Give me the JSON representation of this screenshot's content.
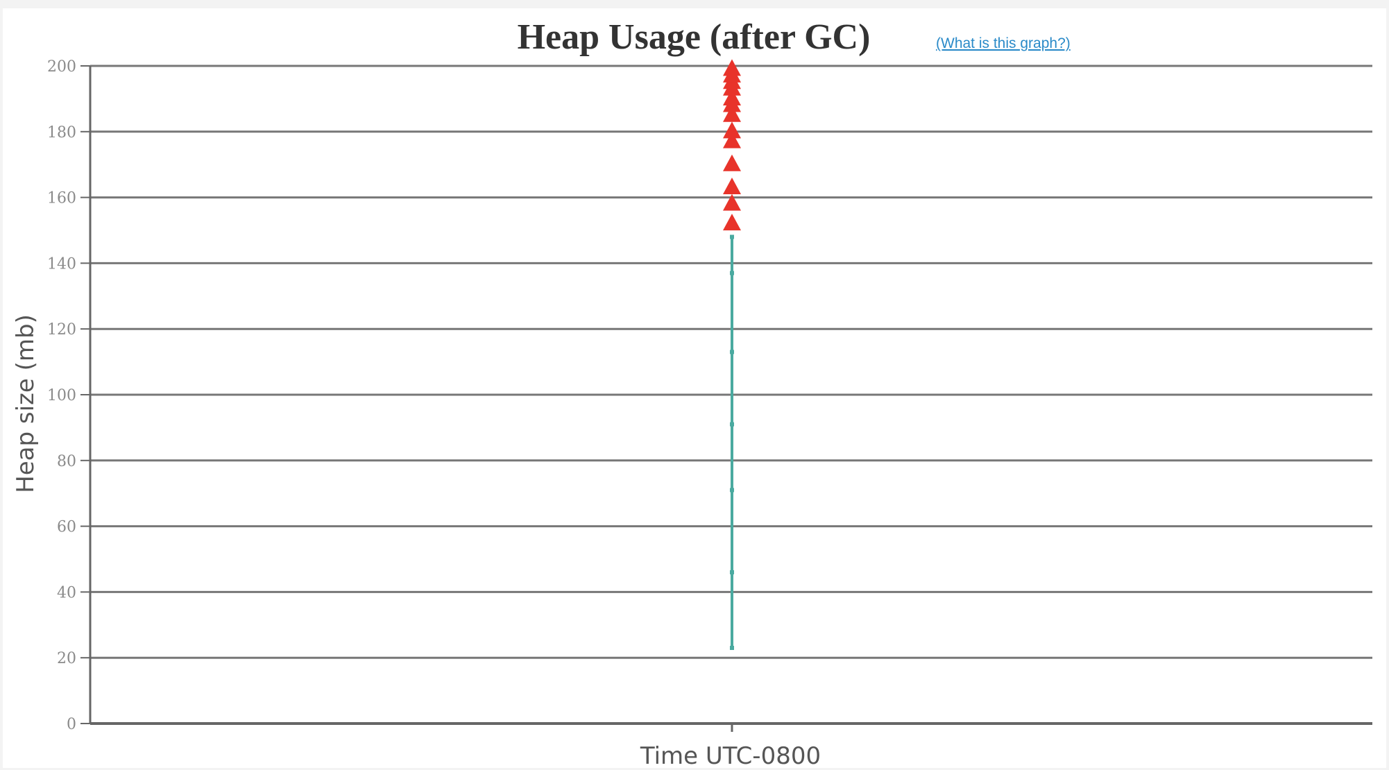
{
  "colors": {
    "background": "#ffffff",
    "grid": "#777777",
    "axis": "#666666",
    "title": "#333333",
    "tick_text": "#8a8a8a",
    "axis_label": "#555555",
    "link": "#2a8ac8"
  },
  "help_link": "(What is this graph?)",
  "chart_data": {
    "type": "scatter",
    "title": "Heap Usage (after GC)",
    "xlabel": "Time UTC-0800",
    "ylabel": "Heap size (mb)",
    "ylim": [
      0,
      200
    ],
    "yticks": [
      "0",
      "20",
      "40",
      "60",
      "80",
      "100",
      "120",
      "140",
      "160",
      "180",
      "200"
    ],
    "grid": true,
    "legend": "none",
    "series": [
      {
        "marker": "point",
        "color": "#4aaaa0",
        "connected": true,
        "y": [
          23,
          46,
          71,
          91,
          113,
          137,
          148
        ]
      },
      {
        "marker": "triangle",
        "color": "#e8332a",
        "connected": false,
        "y": [
          152,
          158,
          163,
          170,
          177,
          180,
          185,
          188,
          190,
          193,
          195,
          197,
          199
        ]
      }
    ]
  }
}
